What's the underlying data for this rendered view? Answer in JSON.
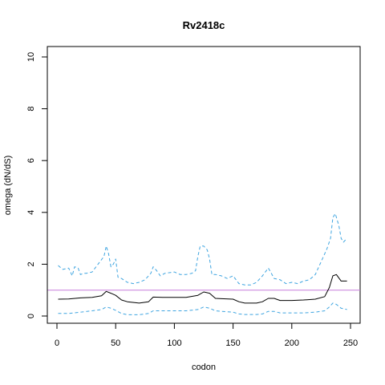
{
  "chart_data": {
    "type": "line",
    "title": "Rv2418c",
    "xlabel": "codon",
    "ylabel": "omega (dN/dS)",
    "xlim": [
      0,
      250
    ],
    "ylim": [
      0,
      10
    ],
    "x_ticks": [
      0,
      50,
      100,
      150,
      200,
      250
    ],
    "y_ticks": [
      0,
      2,
      4,
      6,
      8,
      10
    ],
    "reference_line": {
      "y": 1,
      "color": "#c77cdc"
    },
    "series": [
      {
        "style": "solid",
        "color": "#000000",
        "x": [
          1,
          10,
          20,
          30,
          38,
          42,
          46,
          50,
          55,
          60,
          70,
          78,
          82,
          90,
          100,
          110,
          120,
          125,
          130,
          135,
          140,
          150,
          155,
          160,
          170,
          175,
          180,
          185,
          190,
          200,
          210,
          220,
          228,
          232,
          235,
          238,
          242,
          247
        ],
        "y": [
          0.65,
          0.66,
          0.7,
          0.72,
          0.78,
          0.95,
          0.88,
          0.8,
          0.62,
          0.55,
          0.5,
          0.55,
          0.73,
          0.72,
          0.72,
          0.72,
          0.8,
          0.93,
          0.88,
          0.68,
          0.67,
          0.65,
          0.55,
          0.5,
          0.5,
          0.55,
          0.68,
          0.68,
          0.6,
          0.6,
          0.62,
          0.65,
          0.75,
          1.1,
          1.55,
          1.6,
          1.35,
          1.35
        ]
      },
      {
        "style": "dashed",
        "color": "#3da4e0",
        "x": [
          1,
          5,
          10,
          13,
          15,
          18,
          20,
          23,
          25,
          30,
          35,
          40,
          42,
          44,
          46,
          48,
          50,
          52,
          55,
          60,
          65,
          70,
          75,
          80,
          82,
          85,
          88,
          92,
          100,
          105,
          110,
          115,
          118,
          120,
          122,
          125,
          128,
          130,
          132,
          135,
          140,
          145,
          150,
          155,
          160,
          165,
          170,
          175,
          180,
          182,
          185,
          190,
          195,
          200,
          205,
          210,
          215,
          220,
          225,
          230,
          233,
          235,
          237,
          240,
          242,
          244,
          246,
          247
        ],
        "y": [
          1.95,
          1.8,
          1.85,
          1.55,
          1.9,
          1.85,
          1.6,
          1.65,
          1.65,
          1.7,
          2.0,
          2.3,
          2.7,
          2.4,
          1.9,
          2.0,
          2.2,
          1.5,
          1.45,
          1.3,
          1.25,
          1.3,
          1.4,
          1.65,
          1.9,
          1.75,
          1.55,
          1.65,
          1.7,
          1.6,
          1.6,
          1.65,
          1.75,
          2.3,
          2.7,
          2.7,
          2.55,
          2.2,
          1.6,
          1.6,
          1.55,
          1.45,
          1.55,
          1.25,
          1.2,
          1.2,
          1.3,
          1.55,
          1.85,
          1.7,
          1.45,
          1.4,
          1.25,
          1.3,
          1.25,
          1.35,
          1.4,
          1.6,
          2.1,
          2.6,
          3.0,
          3.8,
          3.95,
          3.5,
          3.0,
          2.85,
          2.95,
          2.9
        ]
      },
      {
        "style": "dashed",
        "color": "#3da4e0",
        "x": [
          1,
          10,
          20,
          30,
          38,
          42,
          46,
          50,
          55,
          60,
          70,
          78,
          82,
          90,
          100,
          110,
          120,
          125,
          130,
          135,
          140,
          150,
          155,
          160,
          170,
          175,
          180,
          185,
          190,
          200,
          210,
          220,
          228,
          232,
          235,
          238,
          242,
          247
        ],
        "y": [
          0.1,
          0.1,
          0.15,
          0.2,
          0.25,
          0.35,
          0.3,
          0.22,
          0.1,
          0.05,
          0.05,
          0.1,
          0.2,
          0.2,
          0.2,
          0.2,
          0.25,
          0.35,
          0.3,
          0.2,
          0.18,
          0.15,
          0.08,
          0.06,
          0.06,
          0.08,
          0.18,
          0.18,
          0.12,
          0.12,
          0.12,
          0.15,
          0.2,
          0.35,
          0.5,
          0.45,
          0.3,
          0.25
        ]
      }
    ]
  }
}
